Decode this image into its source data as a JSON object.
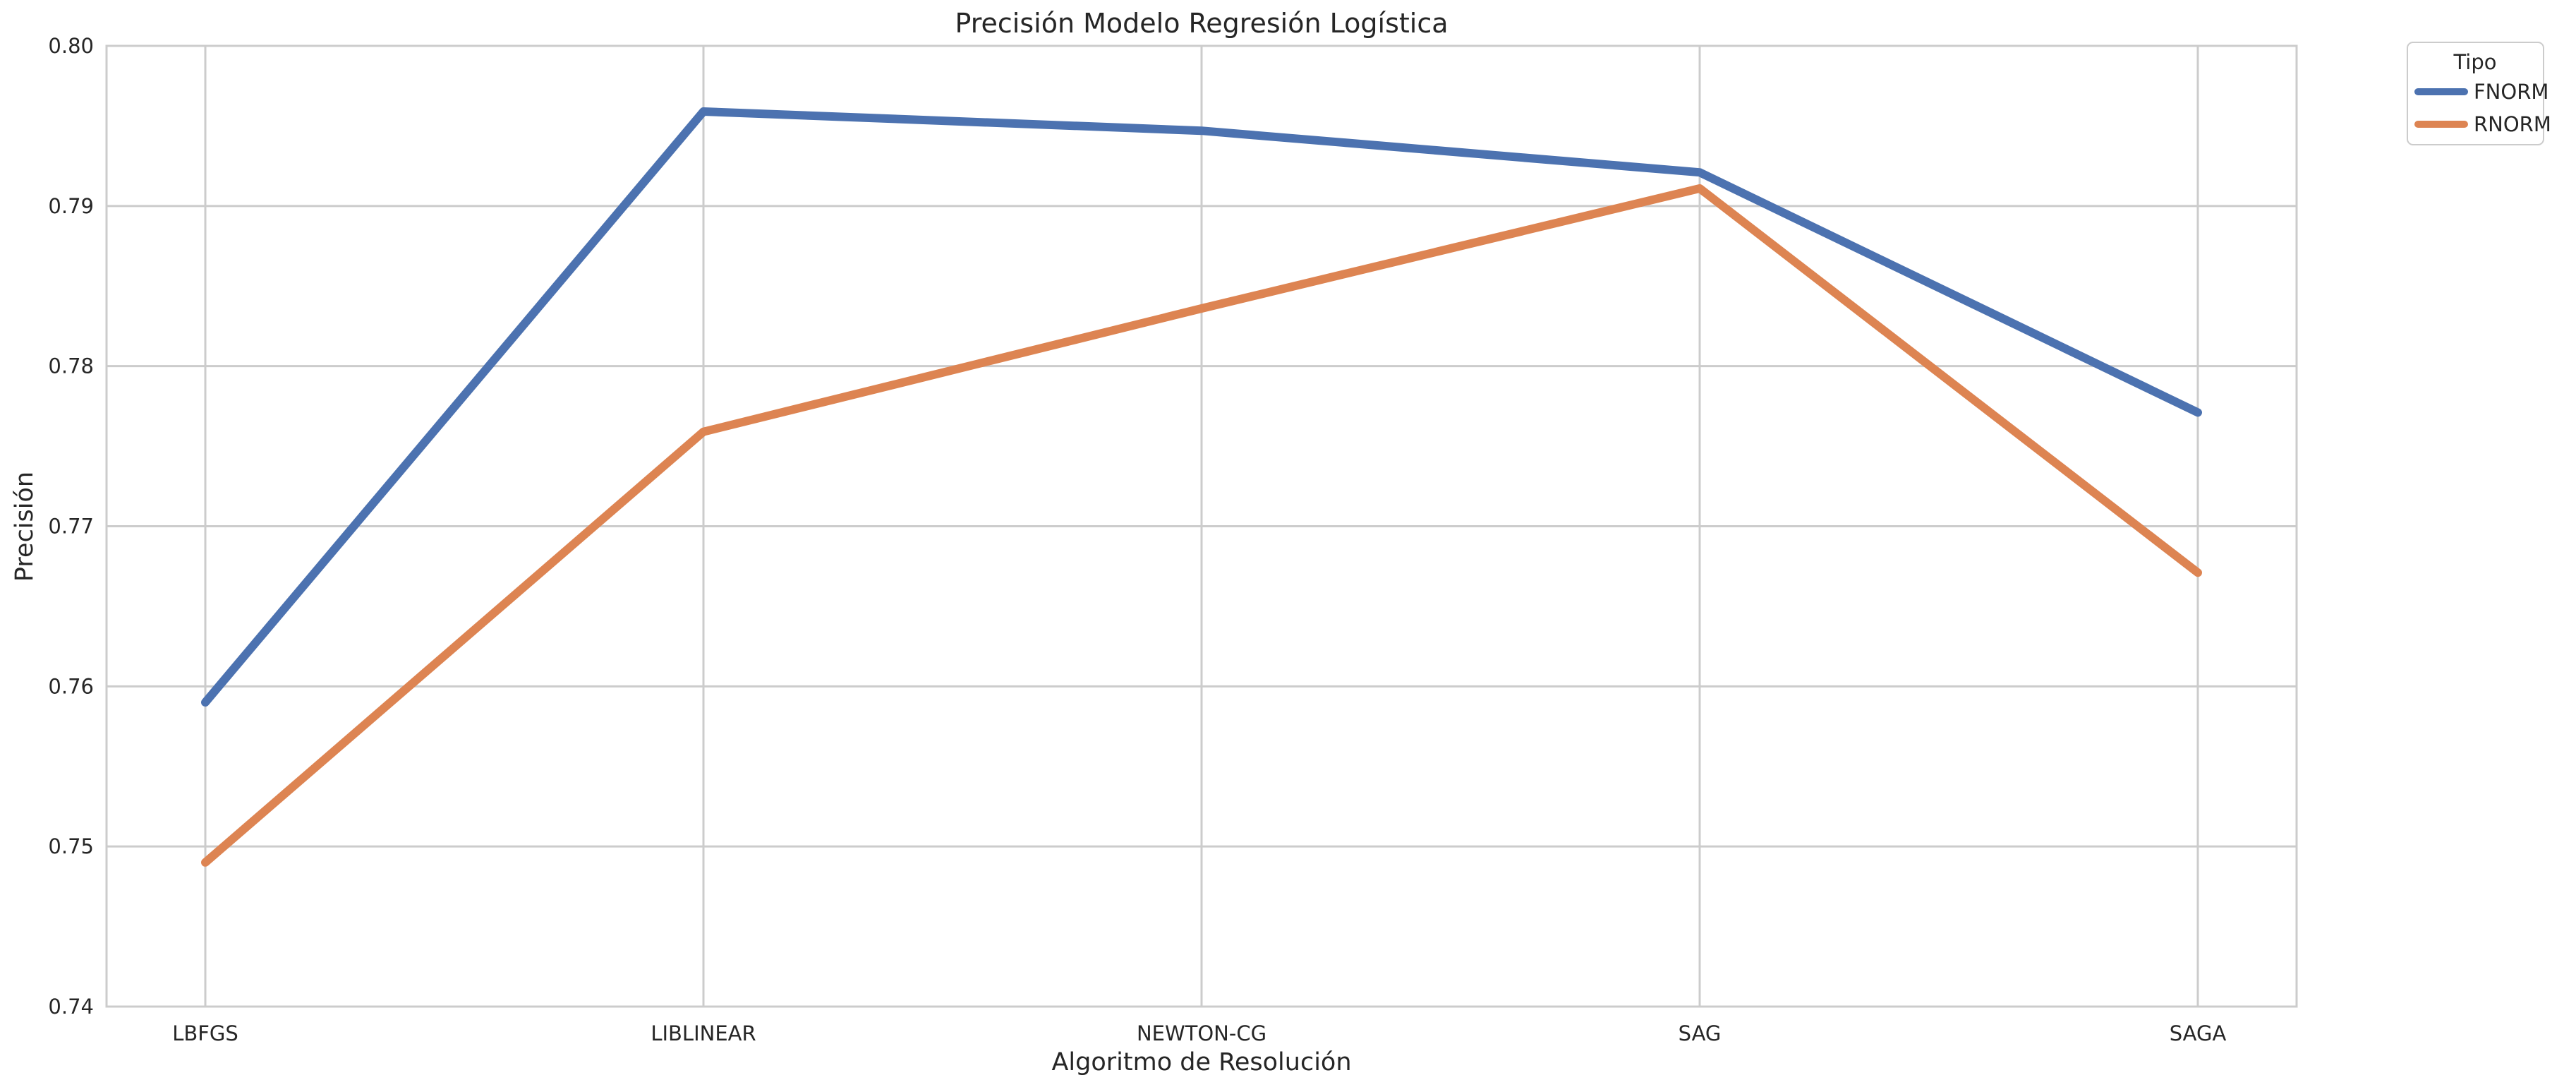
{
  "chart_data": {
    "type": "line",
    "title": "Precisión Modelo Regresión Logística",
    "xlabel": "Algoritmo de Resolución",
    "ylabel": "Precisión",
    "categories": [
      "LBFGS",
      "LIBLINEAR",
      "NEWTON-CG",
      "SAG",
      "SAGA"
    ],
    "ylim": [
      0.74,
      0.8
    ],
    "yticks": [
      "0.74",
      "0.75",
      "0.76",
      "0.77",
      "0.78",
      "0.79",
      "0.80"
    ],
    "grid": true,
    "legend": {
      "title": "Tipo",
      "placement": "outside top-right"
    },
    "series": [
      {
        "name": "FNORM",
        "color": "#4c72b0",
        "values": [
          0.759,
          0.7959,
          0.7947,
          0.7921,
          0.7771
        ]
      },
      {
        "name": "RNORM",
        "color": "#dd8452",
        "values": [
          0.749,
          0.7759,
          0.7836,
          0.7911,
          0.7671
        ]
      }
    ]
  }
}
